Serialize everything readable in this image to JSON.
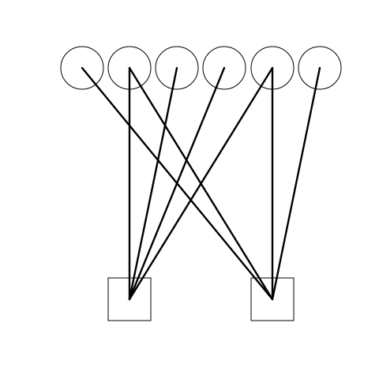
{
  "diagram": {
    "type": "bipartite-graph",
    "colors": {
      "background": "#ffffff",
      "stroke": "#000000"
    },
    "top_nodes": [
      {
        "id": "c1",
        "shape": "circle"
      },
      {
        "id": "c2",
        "shape": "circle"
      },
      {
        "id": "c3",
        "shape": "circle"
      },
      {
        "id": "c4",
        "shape": "circle"
      },
      {
        "id": "c5",
        "shape": "circle"
      },
      {
        "id": "c6",
        "shape": "circle"
      }
    ],
    "bottom_nodes": [
      {
        "id": "s1",
        "shape": "square"
      },
      {
        "id": "s2",
        "shape": "square"
      }
    ],
    "edges": [
      {
        "from": "c1",
        "to": "s2"
      },
      {
        "from": "c2",
        "to": "s1"
      },
      {
        "from": "c2",
        "to": "s2"
      },
      {
        "from": "c3",
        "to": "s1"
      },
      {
        "from": "c4",
        "to": "s1"
      },
      {
        "from": "c5",
        "to": "s1"
      },
      {
        "from": "c5",
        "to": "s2"
      },
      {
        "from": "c6",
        "to": "s2"
      }
    ]
  }
}
